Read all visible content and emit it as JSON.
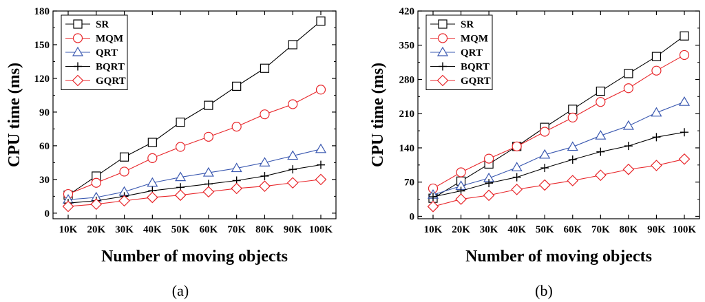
{
  "chart_data": [
    {
      "type": "line",
      "caption": "(a)",
      "xlabel": "Number of moving objects",
      "ylabel": "CPU time (ms)",
      "categories": [
        "10K",
        "20K",
        "30K",
        "40K",
        "50K",
        "60K",
        "70K",
        "80K",
        "90K",
        "100K"
      ],
      "ylim": [
        -5,
        180
      ],
      "yticks": [
        0,
        30,
        60,
        90,
        120,
        150,
        180
      ],
      "legend_position": "top-left",
      "series": [
        {
          "name": "SR",
          "marker": "square",
          "color": "#000000",
          "values": [
            16,
            33,
            50,
            63,
            81,
            96,
            113,
            129,
            150,
            171
          ]
        },
        {
          "name": "MQM",
          "marker": "circle",
          "color": "#e8262a",
          "values": [
            17,
            27,
            37,
            49,
            59,
            68,
            77,
            88,
            97,
            110
          ]
        },
        {
          "name": "QRT",
          "marker": "triangle",
          "color": "#3a58b0",
          "values": [
            12,
            14,
            19,
            27,
            32,
            36,
            40,
            45,
            51,
            57
          ]
        },
        {
          "name": "BQRT",
          "marker": "plus",
          "color": "#000000",
          "values": [
            9,
            11,
            15,
            20,
            23,
            26,
            29,
            33,
            39,
            43
          ]
        },
        {
          "name": "GQRT",
          "marker": "diamond",
          "color": "#e8262a",
          "values": [
            6,
            8,
            11,
            14,
            16,
            19,
            22,
            24,
            27,
            30
          ]
        }
      ]
    },
    {
      "type": "line",
      "caption": "(b)",
      "xlabel": "Number of moving objects",
      "ylabel": "CPU time (ms)",
      "categories": [
        "10K",
        "20K",
        "30K",
        "40K",
        "50K",
        "60K",
        "70K",
        "80K",
        "90K",
        "100K"
      ],
      "ylim": [
        -5,
        420
      ],
      "yticks": [
        0,
        70,
        140,
        210,
        280,
        350,
        420
      ],
      "legend_position": "top-left",
      "series": [
        {
          "name": "SR",
          "marker": "square",
          "color": "#000000",
          "values": [
            37,
            72,
            107,
            143,
            182,
            219,
            256,
            292,
            327,
            369
          ]
        },
        {
          "name": "MQM",
          "marker": "circle",
          "color": "#e8262a",
          "values": [
            57,
            90,
            118,
            143,
            173,
            202,
            234,
            262,
            298,
            330
          ]
        },
        {
          "name": "QRT",
          "marker": "triangle",
          "color": "#3a58b0",
          "values": [
            44,
            62,
            78,
            100,
            126,
            142,
            165,
            185,
            212,
            234
          ]
        },
        {
          "name": "BQRT",
          "marker": "plus",
          "color": "#000000",
          "values": [
            40,
            52,
            68,
            80,
            99,
            116,
            132,
            144,
            162,
            172
          ]
        },
        {
          "name": "GQRT",
          "marker": "diamond",
          "color": "#e8262a",
          "values": [
            20,
            35,
            43,
            55,
            64,
            73,
            84,
            96,
            104,
            117
          ]
        }
      ]
    }
  ]
}
